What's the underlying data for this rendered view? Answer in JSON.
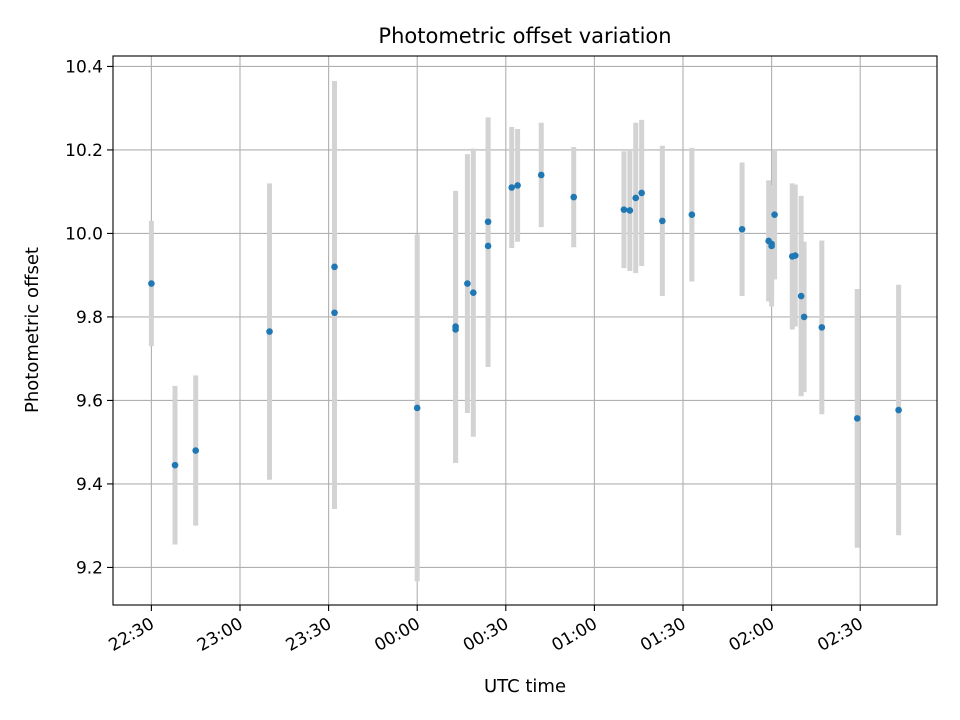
{
  "chart_data": {
    "type": "scatter",
    "title": "Photometric offset variation",
    "xlabel": "UTC time",
    "ylabel": "Photometric offset",
    "x_type": "time",
    "xlim": [
      "22:17",
      "02:56"
    ],
    "ylim": [
      9.11,
      10.425
    ],
    "x_ticks": [
      "22:30",
      "23:00",
      "23:30",
      "00:00",
      "00:30",
      "01:00",
      "01:30",
      "02:00",
      "02:30"
    ],
    "y_ticks": [
      9.2,
      9.4,
      9.6,
      9.8,
      10.0,
      10.2,
      10.4
    ],
    "y_tick_labels": [
      "9.2",
      "9.4",
      "9.6",
      "9.8",
      "10.0",
      "10.2",
      "10.4"
    ],
    "grid": true,
    "colors": {
      "points": "#1f77b4",
      "errorbars": "#d3d3d3",
      "grid": "#b0b0b0"
    },
    "series": [
      {
        "points": [
          {
            "x": "22:30",
            "y": 9.88,
            "err": 0.15
          },
          {
            "x": "22:38",
            "y": 9.445,
            "err": 0.19
          },
          {
            "x": "22:45",
            "y": 9.48,
            "err": 0.18
          },
          {
            "x": "23:10",
            "y": 9.765,
            "err": 0.355
          },
          {
            "x": "23:32",
            "y": 9.92,
            "err": 0.445
          },
          {
            "x": "23:32",
            "y": 9.81,
            "err": 0.47
          },
          {
            "x": "00:00",
            "y": 9.582,
            "err": 0.415
          },
          {
            "x": "00:13",
            "y": 9.777,
            "err": 0.325
          },
          {
            "x": "00:13",
            "y": 9.77,
            "err": 0.32
          },
          {
            "x": "00:17",
            "y": 9.88,
            "err": 0.31
          },
          {
            "x": "00:19",
            "y": 9.858,
            "err": 0.345
          },
          {
            "x": "00:24",
            "y": 9.97,
            "err": 0.29
          },
          {
            "x": "00:24",
            "y": 10.028,
            "err": 0.25
          },
          {
            "x": "00:32",
            "y": 10.11,
            "err": 0.145
          },
          {
            "x": "00:34",
            "y": 10.115,
            "err": 0.135
          },
          {
            "x": "00:42",
            "y": 10.14,
            "err": 0.125
          },
          {
            "x": "00:53",
            "y": 10.087,
            "err": 0.12
          },
          {
            "x": "01:10",
            "y": 10.057,
            "err": 0.14
          },
          {
            "x": "01:12",
            "y": 10.055,
            "err": 0.145
          },
          {
            "x": "01:14",
            "y": 10.085,
            "err": 0.18
          },
          {
            "x": "01:16",
            "y": 10.097,
            "err": 0.175
          },
          {
            "x": "01:23",
            "y": 10.03,
            "err": 0.18
          },
          {
            "x": "01:33",
            "y": 10.045,
            "err": 0.16
          },
          {
            "x": "01:50",
            "y": 10.01,
            "err": 0.16
          },
          {
            "x": "01:59",
            "y": 9.982,
            "err": 0.145
          },
          {
            "x": "02:00",
            "y": 9.97,
            "err": 0.145
          },
          {
            "x": "02:00",
            "y": 9.975,
            "err": 0.12
          },
          {
            "x": "02:01",
            "y": 10.045,
            "err": 0.155
          },
          {
            "x": "02:07",
            "y": 9.945,
            "err": 0.175
          },
          {
            "x": "02:08",
            "y": 9.947,
            "err": 0.17
          },
          {
            "x": "02:10",
            "y": 9.85,
            "err": 0.24
          },
          {
            "x": "02:11",
            "y": 9.8,
            "err": 0.18
          },
          {
            "x": "02:17",
            "y": 9.775,
            "err": 0.208
          },
          {
            "x": "02:29",
            "y": 9.557,
            "err": 0.31
          },
          {
            "x": "02:43",
            "y": 9.577,
            "err": 0.3
          }
        ]
      }
    ]
  }
}
